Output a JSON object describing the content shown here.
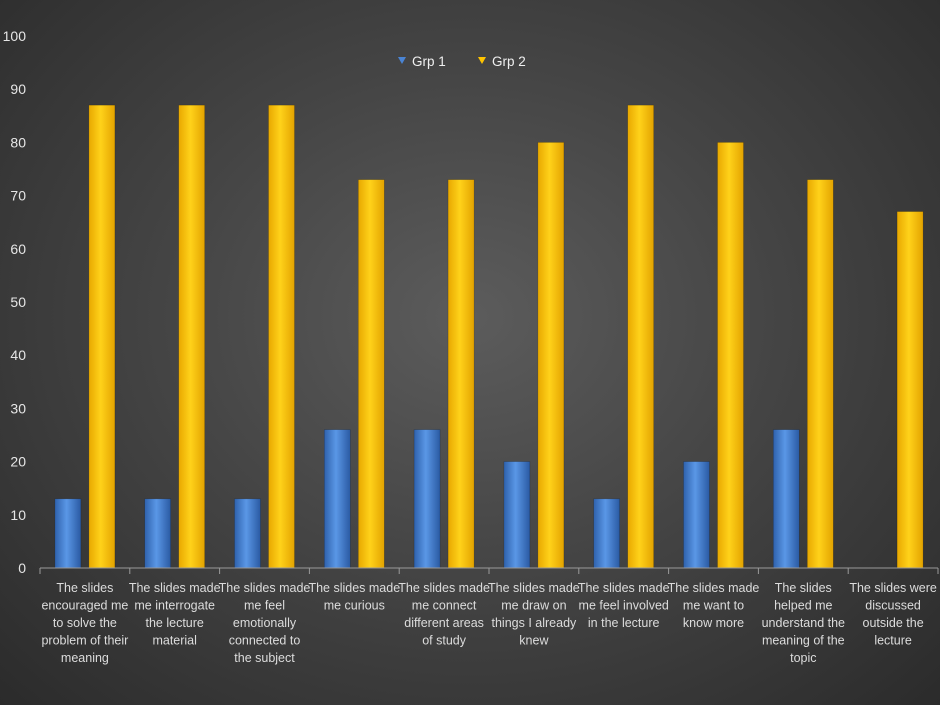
{
  "chart_data": {
    "type": "bar",
    "title": "",
    "xlabel": "",
    "ylabel": "",
    "ylim": [
      0,
      100
    ],
    "yticks": [
      0,
      10,
      20,
      30,
      40,
      50,
      60,
      70,
      80,
      90,
      100
    ],
    "grid": false,
    "legend_position": "top-center",
    "categories": [
      [
        "The slides",
        "encouraged me",
        "to solve the",
        "problem of their",
        "meaning"
      ],
      [
        "The slides made",
        "me interrogate",
        "the lecture",
        "material"
      ],
      [
        "The slides made",
        "me feel",
        "emotionally",
        "connected to",
        "the subject"
      ],
      [
        "The slides made",
        "me curious"
      ],
      [
        "The slides made",
        "me connect",
        "different areas",
        "of study"
      ],
      [
        "The slides made",
        "me draw on",
        "things I already",
        "knew"
      ],
      [
        "The slides made",
        "me feel involved",
        "in the lecture"
      ],
      [
        "The slides made",
        "me want to",
        "know more"
      ],
      [
        "The slides",
        "helped me",
        "understand the",
        "meaning of the",
        "topic"
      ],
      [
        "The slides were",
        "discussed",
        "outside the",
        "lecture"
      ]
    ],
    "series": [
      {
        "name": "Grp 1",
        "color": "#4a84d4",
        "values": [
          13,
          13,
          13,
          26,
          26,
          20,
          13,
          20,
          26,
          0
        ]
      },
      {
        "name": "Grp 2",
        "color": "#ffc400",
        "values": [
          87,
          87,
          87,
          73,
          73,
          80,
          87,
          80,
          73,
          67
        ]
      }
    ]
  }
}
